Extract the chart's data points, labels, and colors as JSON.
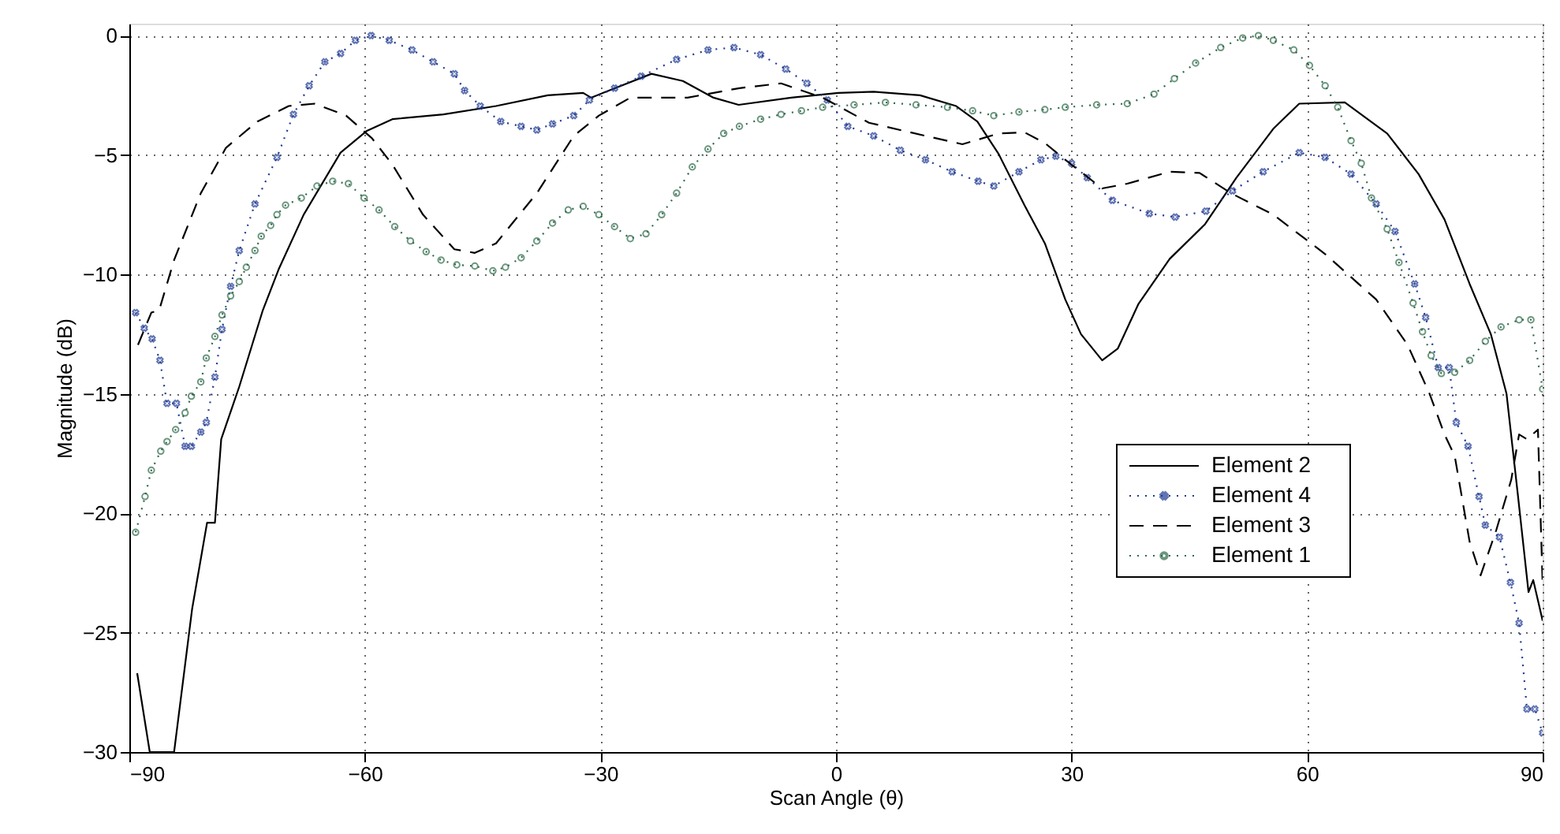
{
  "chart_data": {
    "type": "line",
    "xlabel": "Scan Angle (θ)",
    "ylabel": "Magnitude (dB)",
    "xlim": [
      -90,
      90
    ],
    "ylim": [
      -30,
      0.5
    ],
    "xticks": [
      -90,
      -60,
      -30,
      0,
      30,
      60,
      90
    ],
    "yticks": [
      -30,
      -25,
      -20,
      -15,
      -10,
      -5,
      0
    ],
    "grid": true,
    "legend": "bottom right",
    "series": [
      {
        "name": "Element 2",
        "color": "#000000",
        "line_style": "solid",
        "marker": "none",
        "x": [
          -89,
          -87.4,
          -84.3,
          -82,
          -80.1,
          -79.1,
          -78.3,
          -76,
          -73,
          -71,
          -67.8,
          -63.1,
          -59.8,
          -56.5,
          -50,
          -43.3,
          -36.7,
          -32.2,
          -31.2,
          -23.5,
          -19.5,
          -15.6,
          -12.4,
          -5.7,
          0.3,
          4.8,
          10.7,
          15.3,
          18,
          20.7,
          24,
          26.6,
          29.2,
          31.2,
          33.9,
          35.9,
          38.5,
          42.5,
          47,
          51,
          55.7,
          59,
          64.8,
          70.2,
          74.2,
          77.5,
          80.7,
          83.4,
          85.4,
          86.8,
          88.2,
          88.8,
          90
        ],
        "values": [
          -26.7,
          -30,
          -30,
          -24,
          -20.4,
          -20.4,
          -16.9,
          -14.7,
          -11.5,
          -9.8,
          -7.5,
          -4.9,
          -4.0,
          -3.5,
          -3.3,
          -2.95,
          -2.5,
          -2.4,
          -2.6,
          -1.6,
          -1.9,
          -2.6,
          -2.9,
          -2.6,
          -2.4,
          -2.35,
          -2.5,
          -2.95,
          -3.6,
          -4.95,
          -7.1,
          -8.7,
          -11.05,
          -12.5,
          -13.6,
          -13.1,
          -11.25,
          -9.35,
          -7.9,
          -5.95,
          -3.9,
          -2.85,
          -2.8,
          -4.1,
          -5.8,
          -7.7,
          -10.4,
          -12.5,
          -15.0,
          -19.1,
          -23.3,
          -22.8,
          -24.5
        ]
      },
      {
        "name": "Element 4",
        "color": "#1f3a93",
        "line_style": "dotted",
        "marker": "cross",
        "x": [
          -89.2,
          -88.1,
          -87.1,
          -86.1,
          -85.2,
          -84,
          -82.9,
          -82.1,
          -80.9,
          -80.2,
          -79.1,
          -78.2,
          -77.1,
          -76,
          -74,
          -71.2,
          -69.1,
          -67.1,
          -65.1,
          -63.1,
          -61.2,
          -59.2,
          -56.9,
          -54,
          -51.3,
          -48.6,
          -47.3,
          -45.3,
          -42.7,
          -40.1,
          -38.1,
          -36.1,
          -33.4,
          -31.4,
          -28.2,
          -24.8,
          -20.3,
          -16.3,
          -13,
          -9.6,
          -6.4,
          -3.7,
          -1.1,
          1.5,
          4.8,
          8.2,
          11.4,
          14.8,
          18.1,
          20.1,
          23.3,
          26.1,
          28,
          30,
          32,
          35.2,
          39.9,
          43.2,
          47.1,
          50.5,
          54.4,
          59,
          62.3,
          65.6,
          68.8,
          71.2,
          73.7,
          75.1,
          76.7,
          78.1,
          79,
          80.5,
          81.9,
          82.7,
          84.5,
          85.9,
          87,
          88,
          89,
          90
        ],
        "values": [
          -11.6,
          -12.25,
          -12.7,
          -13.6,
          -15.4,
          -15.4,
          -17.2,
          -17.2,
          -16.6,
          -16.2,
          -14.3,
          -12.3,
          -10.5,
          -9.0,
          -7.05,
          -5.1,
          -3.3,
          -2.1,
          -1.1,
          -0.75,
          -0.2,
          0,
          -0.2,
          -0.6,
          -1.1,
          -1.6,
          -2.3,
          -2.95,
          -3.6,
          -3.8,
          -3.95,
          -3.7,
          -3.35,
          -2.7,
          -2.2,
          -1.7,
          -1.0,
          -0.6,
          -0.5,
          -0.8,
          -1.4,
          -2.0,
          -2.7,
          -3.8,
          -4.2,
          -4.8,
          -5.2,
          -5.7,
          -6.1,
          -6.3,
          -5.7,
          -5.2,
          -5.05,
          -5.35,
          -5.95,
          -6.9,
          -7.45,
          -7.6,
          -7.35,
          -6.5,
          -5.7,
          -4.9,
          -5.1,
          -5.8,
          -7.05,
          -8.2,
          -10.4,
          -11.8,
          -13.9,
          -13.9,
          -16.2,
          -17.2,
          -19.3,
          -20.5,
          -21,
          -22.9,
          -24.6,
          -28.2,
          -28.2,
          -29.2
        ]
      },
      {
        "name": "Element 3",
        "color": "#000000",
        "line_style": "dashed",
        "marker": "none",
        "x": [
          -88.9,
          -87.2,
          -86.2,
          -84.3,
          -80.9,
          -77.7,
          -73.7,
          -69.7,
          -66.4,
          -62.4,
          -59.1,
          -56.5,
          -52.6,
          -48.6,
          -46,
          -43.3,
          -38.1,
          -33.4,
          -30.2,
          -26.2,
          -18.9,
          -12.3,
          -7,
          -1.7,
          4.2,
          11.4,
          16.1,
          20.7,
          24,
          26.6,
          29.2,
          33.9,
          37.1,
          42.5,
          46.3,
          50.3,
          55.7,
          62.3,
          68.8,
          72.8,
          75.6,
          77.5,
          78.8,
          80.7,
          82.1,
          84.1,
          86,
          87,
          88,
          89.4,
          90
        ],
        "values": [
          -12.95,
          -11.6,
          -11.5,
          -9.4,
          -6.6,
          -4.7,
          -3.6,
          -2.95,
          -2.85,
          -3.35,
          -4.3,
          -5.4,
          -7.5,
          -8.95,
          -9.1,
          -8.7,
          -6.6,
          -4.2,
          -3.35,
          -2.6,
          -2.6,
          -2.2,
          -2.0,
          -2.6,
          -3.65,
          -4.2,
          -4.55,
          -4.1,
          -4.05,
          -4.5,
          -5.2,
          -6.4,
          -6.2,
          -5.7,
          -5.75,
          -6.6,
          -7.5,
          -9.15,
          -11.05,
          -12.95,
          -15,
          -16.7,
          -17.6,
          -21.2,
          -22.6,
          -20.7,
          -18.6,
          -16.7,
          -16.9,
          -16.5,
          -23
        ]
      },
      {
        "name": "Element 1",
        "color": "#2e6b4a",
        "line_style": "dotted",
        "marker": "circle",
        "x": [
          -89.2,
          -88,
          -87.2,
          -86,
          -85.2,
          -84.1,
          -82.9,
          -82.1,
          -80.9,
          -80.2,
          -79.1,
          -78.2,
          -77.1,
          -76,
          -75.1,
          -74,
          -73.2,
          -72,
          -71.2,
          -70.1,
          -68.1,
          -66.1,
          -64.1,
          -62.1,
          -60.1,
          -58.2,
          -56.2,
          -54.2,
          -52.2,
          -50.3,
          -48.3,
          -46,
          -43.7,
          -42.1,
          -40.1,
          -38.1,
          -36.1,
          -34.1,
          -32.2,
          -30.2,
          -28.2,
          -26.2,
          -24.2,
          -22.2,
          -20.3,
          -18.3,
          -16.3,
          -14.3,
          -12.3,
          -9.6,
          -7,
          -4.4,
          -1.7,
          2.3,
          6.3,
          10.2,
          14.2,
          17.4,
          20.1,
          23.3,
          26.6,
          29.2,
          33.2,
          37.1,
          40.5,
          43.1,
          45.8,
          49,
          51.8,
          53.8,
          55.7,
          58.3,
          60.3,
          62.3,
          63.9,
          65.6,
          66.9,
          68.2,
          70.2,
          71.7,
          73.5,
          74.7,
          75.8,
          77.1,
          78.8,
          80.7,
          82.7,
          84.7,
          87,
          88.5,
          90
        ],
        "values": [
          -20.8,
          -19.3,
          -18.2,
          -17.4,
          -17.0,
          -16.5,
          -15.8,
          -15.1,
          -14.5,
          -13.5,
          -12.6,
          -11.7,
          -10.9,
          -10.3,
          -9.7,
          -9.0,
          -8.4,
          -7.95,
          -7.5,
          -7.1,
          -6.8,
          -6.3,
          -6.1,
          -6.2,
          -6.8,
          -7.3,
          -8.0,
          -8.6,
          -9.05,
          -9.4,
          -9.6,
          -9.65,
          -9.85,
          -9.7,
          -9.3,
          -8.6,
          -7.85,
          -7.3,
          -7.15,
          -7.5,
          -8.0,
          -8.5,
          -8.3,
          -7.5,
          -6.6,
          -5.5,
          -4.75,
          -4.1,
          -3.8,
          -3.5,
          -3.3,
          -3.15,
          -3.0,
          -2.9,
          -2.8,
          -2.9,
          -3.0,
          -3.15,
          -3.35,
          -3.2,
          -3.1,
          -3.0,
          -2.9,
          -2.85,
          -2.45,
          -1.8,
          -1.15,
          -0.5,
          -0.1,
          0,
          -0.2,
          -0.6,
          -1.25,
          -2.1,
          -3.0,
          -4.4,
          -5.35,
          -6.8,
          -8.1,
          -9.5,
          -11.2,
          -12.4,
          -13.4,
          -14.15,
          -14.1,
          -13.6,
          -12.8,
          -12.2,
          -11.9,
          -11.9,
          -14.8
        ]
      }
    ]
  }
}
